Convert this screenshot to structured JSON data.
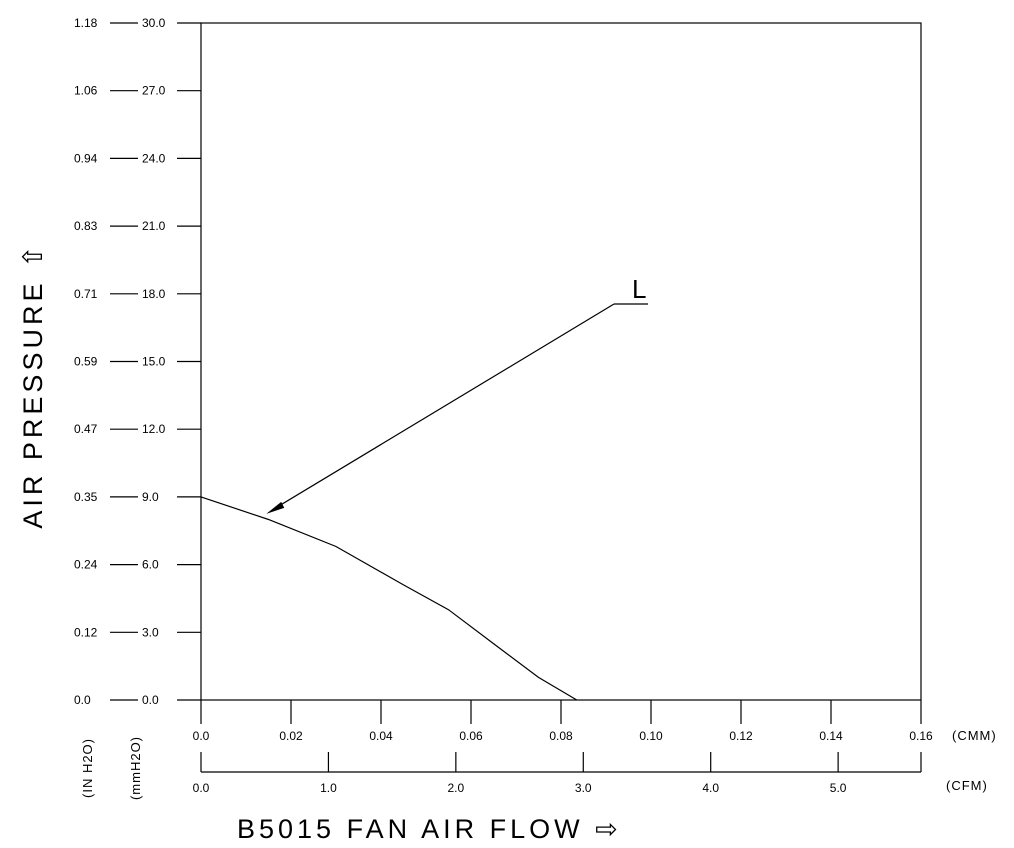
{
  "chart_data": {
    "type": "line",
    "title": "",
    "xlabel": "B5015   FAN   AIR  FLOW",
    "ylabel": "AIR  PRESSURE",
    "x_units": {
      "primary": "(CMM)",
      "secondary": "(CFM)"
    },
    "y_units": {
      "primary": "(mmH2O)",
      "secondary": "(IN  H2O)"
    },
    "xlim": [
      0,
      0.16
    ],
    "ylim": [
      0,
      30
    ],
    "x_ticks_cmm": [
      "0.0",
      "0.02",
      "0.04",
      "0.06",
      "0.08",
      "0.10",
      "0.12",
      "0.14",
      "0.16"
    ],
    "x_ticks_cfm": [
      "0.0",
      "1.0",
      "2.0",
      "3.0",
      "4.0",
      "5.0"
    ],
    "y_ticks_mmh2o": [
      "0.0",
      "3.0",
      "6.0",
      "9.0",
      "12.0",
      "15.0",
      "18.0",
      "21.0",
      "24.0",
      "27.0",
      "30.0"
    ],
    "y_ticks_inh2o": [
      "0.0",
      "0.12",
      "0.24",
      "0.35",
      "0.47",
      "0.59",
      "0.71",
      "0.83",
      "0.94",
      "1.06",
      "1.18"
    ],
    "series": [
      {
        "name": "L",
        "x": [
          0.0,
          0.015,
          0.03,
          0.045,
          0.055,
          0.065,
          0.075,
          0.0835
        ],
        "y": [
          9.0,
          8.0,
          6.8,
          5.1,
          4.0,
          2.5,
          1.0,
          0.0
        ]
      }
    ],
    "annotation": {
      "text": "L",
      "x": 0.0145,
      "y": 8.25
    },
    "grid": false,
    "arrows": {
      "x": "⇨",
      "y": "⇧"
    }
  }
}
